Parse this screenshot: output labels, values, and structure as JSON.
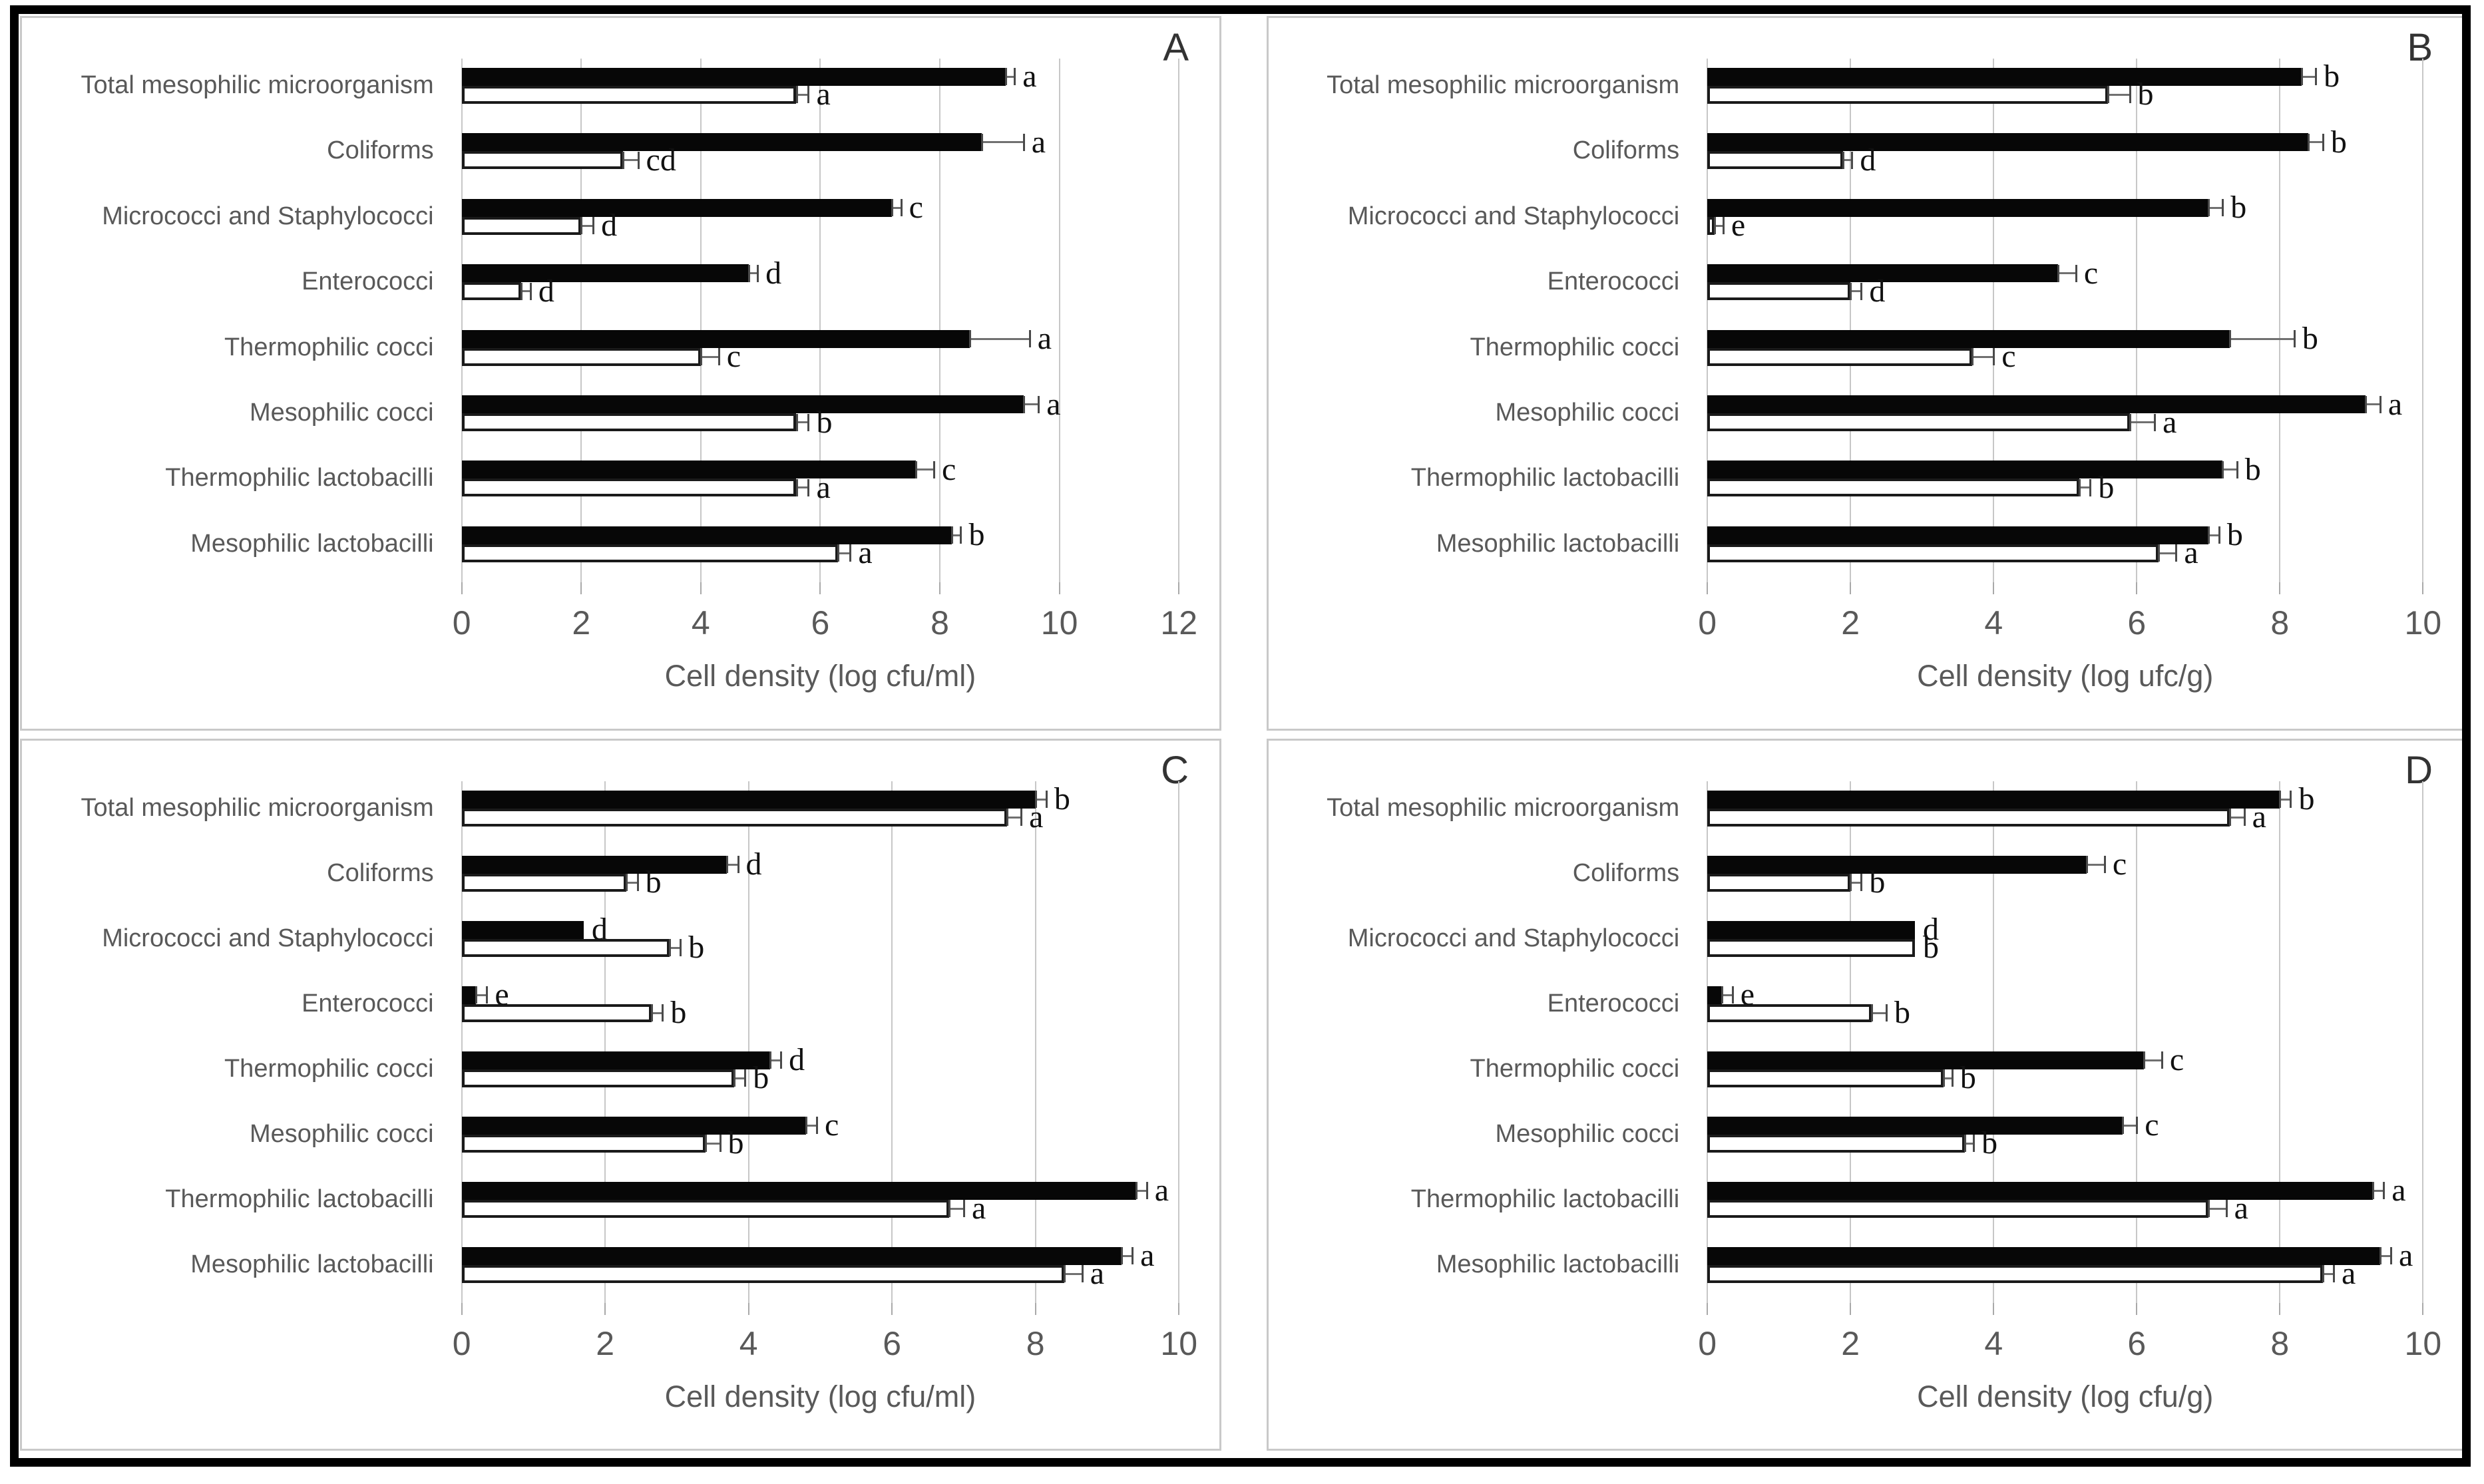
{
  "figure": {
    "outer_border_color": "#000000",
    "panel_border_color": "#c9c9c9",
    "background": "#ffffff",
    "bar_fill_black": "#070707",
    "bar_fill_white": "#ffffff",
    "gridline_color": "#c7c7c7",
    "text_color": "#595959",
    "letter_color": "#111111"
  },
  "chart_data": [
    {
      "type": "bar",
      "orientation": "horizontal",
      "panel_label": "A",
      "xlabel": "Cell density (log cfu/ml)",
      "xlim": [
        0,
        12
      ],
      "xticks": [
        0,
        2,
        4,
        6,
        8,
        10,
        12
      ],
      "grid": "vertical, every 2 units",
      "legend": "none",
      "categories": [
        "Total mesophilic microorganism",
        "Coliforms",
        "Micrococci and Staphylococci",
        "Enterococci",
        "Thermophilic cocci",
        "Mesophilic cocci",
        "Thermophilic lactobacilli",
        "Mesophilic lactobacilli"
      ],
      "series": [
        {
          "name": "filled-black-bar",
          "fill": "#070707",
          "values": [
            9.1,
            8.7,
            7.2,
            4.8,
            8.5,
            9.4,
            7.6,
            8.2
          ],
          "errors": [
            0.15,
            0.7,
            0.15,
            0.15,
            1.0,
            0.25,
            0.3,
            0.15
          ],
          "sig_letters": [
            "a",
            "a",
            "c",
            "d",
            "a",
            "a",
            "c",
            "b"
          ]
        },
        {
          "name": "open-white-bar",
          "fill": "#ffffff",
          "values": [
            5.6,
            2.7,
            2.0,
            1.0,
            4.0,
            5.6,
            5.6,
            6.3
          ],
          "errors": [
            0.2,
            0.25,
            0.2,
            0.15,
            0.3,
            0.2,
            0.2,
            0.2
          ],
          "sig_letters": [
            "a",
            "cd",
            "d",
            "d",
            "c",
            "b",
            "a",
            "a"
          ]
        }
      ]
    },
    {
      "type": "bar",
      "orientation": "horizontal",
      "panel_label": "B",
      "xlabel": "Cell density (log ufc/g)",
      "xlim": [
        0,
        10
      ],
      "xticks": [
        0,
        2,
        4,
        6,
        8,
        10
      ],
      "grid": "vertical, every 2 units",
      "legend": "none",
      "categories": [
        "Total mesophilic microorganism",
        "Coliforms",
        "Micrococci and Staphylococci",
        "Enterococci",
        "Thermophilic cocci",
        "Mesophilic cocci",
        "Thermophilic lactobacilli",
        "Mesophilic lactobacilli"
      ],
      "series": [
        {
          "name": "filled-black-bar",
          "fill": "#070707",
          "values": [
            8.3,
            8.4,
            7.0,
            4.9,
            7.3,
            9.2,
            7.2,
            7.0
          ],
          "errors": [
            0.2,
            0.2,
            0.2,
            0.25,
            0.9,
            0.2,
            0.2,
            0.15
          ],
          "sig_letters": [
            "b",
            "b",
            "b",
            "c",
            "b",
            "a",
            "b",
            "b"
          ]
        },
        {
          "name": "open-white-bar",
          "fill": "#ffffff",
          "values": [
            5.6,
            1.9,
            0.1,
            2.0,
            3.7,
            5.9,
            5.2,
            6.3
          ],
          "errors": [
            0.3,
            0.12,
            0.12,
            0.15,
            0.3,
            0.35,
            0.15,
            0.25
          ],
          "sig_letters": [
            "b",
            "d",
            "e",
            "d",
            "c",
            "a",
            "b",
            "a"
          ]
        }
      ]
    },
    {
      "type": "bar",
      "orientation": "horizontal",
      "panel_label": "C",
      "xlabel": "Cell density (log cfu/ml)",
      "xlim": [
        0,
        10
      ],
      "xticks": [
        0,
        2,
        4,
        6,
        8,
        10
      ],
      "grid": "vertical, every 2 units",
      "legend": "none",
      "categories": [
        "Total mesophilic microorganism",
        "Coliforms",
        "Micrococci and Staphylococci",
        "Enterococci",
        "Thermophilic cocci",
        "Mesophilic cocci",
        "Thermophilic lactobacilli",
        "Mesophilic lactobacilli"
      ],
      "series": [
        {
          "name": "filled-black-bar",
          "fill": "#070707",
          "values": [
            8.0,
            3.7,
            1.7,
            0.2,
            4.3,
            4.8,
            9.4,
            9.2
          ],
          "errors": [
            0.15,
            0.15,
            0,
            0.15,
            0.15,
            0.15,
            0.15,
            0.15
          ],
          "sig_letters": [
            "b",
            "d",
            "d",
            "e",
            "d",
            "c",
            "a",
            "a"
          ]
        },
        {
          "name": "open-white-bar",
          "fill": "#ffffff",
          "values": [
            7.6,
            2.3,
            2.9,
            2.65,
            3.8,
            3.4,
            6.8,
            8.4
          ],
          "errors": [
            0.2,
            0.15,
            0.15,
            0.15,
            0.15,
            0.2,
            0.2,
            0.25
          ],
          "sig_letters": [
            "a",
            "b",
            "b",
            "b",
            "b",
            "b",
            "a",
            "a"
          ]
        }
      ]
    },
    {
      "type": "bar",
      "orientation": "horizontal",
      "panel_label": "D",
      "xlabel": "Cell density (log cfu/g)",
      "xlim": [
        0,
        10
      ],
      "xticks": [
        0,
        2,
        4,
        6,
        8,
        10
      ],
      "grid": "vertical, every 2 units",
      "legend": "none",
      "categories": [
        "Total mesophilic microorganism",
        "Coliforms",
        "Micrococci and Staphylococci",
        "Enterococci",
        "Thermophilic cocci",
        "Mesophilic cocci",
        "Thermophilic lactobacilli",
        "Mesophilic lactobacilli"
      ],
      "series": [
        {
          "name": "filled-black-bar",
          "fill": "#070707",
          "values": [
            8.0,
            5.3,
            2.9,
            0.2,
            6.1,
            5.8,
            9.3,
            9.4
          ],
          "errors": [
            0.15,
            0.25,
            0,
            0.15,
            0.25,
            0.2,
            0.15,
            0.15
          ],
          "sig_letters": [
            "b",
            "c",
            "d",
            "e",
            "c",
            "c",
            "a",
            "a"
          ]
        },
        {
          "name": "open-white-bar",
          "fill": "#ffffff",
          "values": [
            7.3,
            2.0,
            2.9,
            2.3,
            3.3,
            3.6,
            7.0,
            8.6
          ],
          "errors": [
            0.2,
            0.15,
            0,
            0.2,
            0.12,
            0.12,
            0.25,
            0.15
          ],
          "sig_letters": [
            "a",
            "b",
            "b",
            "b",
            "b",
            "b",
            "a",
            "a"
          ]
        }
      ]
    }
  ]
}
